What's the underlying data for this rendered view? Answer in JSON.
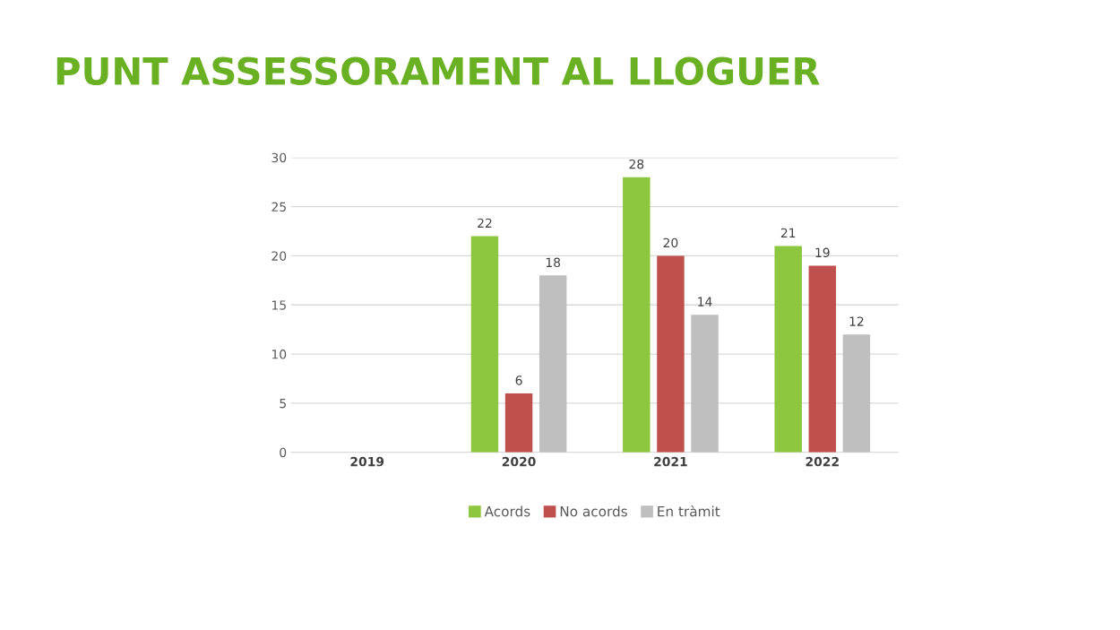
{
  "chart_data": {
    "type": "bar",
    "title": "PUNT ASSESSORAMENT AL LLOGUER",
    "categories": [
      "2019",
      "2020",
      "2021",
      "2022"
    ],
    "series": [
      {
        "name": "Acords",
        "color": "#8dc63f",
        "values": [
          null,
          22,
          28,
          21
        ]
      },
      {
        "name": "No acords",
        "color": "#c0504d",
        "values": [
          null,
          6,
          20,
          19
        ]
      },
      {
        "name": "En tràmit",
        "color": "#bfbfbf",
        "values": [
          null,
          18,
          14,
          12
        ]
      }
    ],
    "ylim": [
      0,
      30
    ],
    "yticks": [
      0,
      5,
      10,
      15,
      20,
      25,
      30
    ],
    "grid": "y",
    "legend": "bottom",
    "data_labels": true
  }
}
